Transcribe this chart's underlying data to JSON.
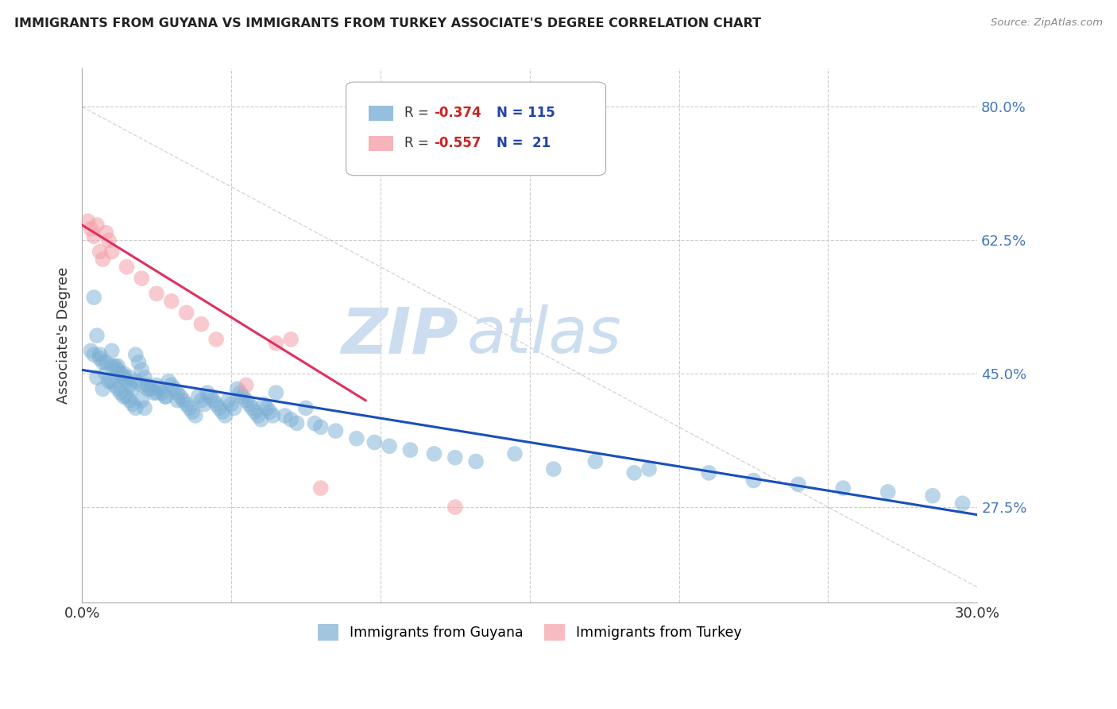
{
  "title": "IMMIGRANTS FROM GUYANA VS IMMIGRANTS FROM TURKEY ASSOCIATE'S DEGREE CORRELATION CHART",
  "source": "Source: ZipAtlas.com",
  "ylabel": "Associate's Degree",
  "xmin": 0.0,
  "xmax": 30.0,
  "ymin": 15.0,
  "ymax": 85.0,
  "yticks": [
    27.5,
    45.0,
    62.5,
    80.0
  ],
  "xticks": [
    0.0,
    5.0,
    10.0,
    15.0,
    20.0,
    25.0,
    30.0
  ],
  "guyana_color": "#7BAFD4",
  "turkey_color": "#F4A0A8",
  "guyana_line_color": "#1A4FBB",
  "turkey_line_color": "#E03060",
  "guyana_line_x0": 0.0,
  "guyana_line_x1": 30.0,
  "guyana_line_y0": 45.5,
  "guyana_line_y1": 26.5,
  "turkey_line_x0": 0.0,
  "turkey_line_x1": 9.5,
  "turkey_line_y0": 64.5,
  "turkey_line_y1": 41.5,
  "ref_line_x0": 0.0,
  "ref_line_x1": 30.0,
  "ref_line_y0": 80.0,
  "ref_line_y1": 17.0,
  "watermark_zip": "ZIP",
  "watermark_atlas": "atlas",
  "watermark_color": "#CCDDF0",
  "guyana_x": [
    0.4,
    0.5,
    0.5,
    0.6,
    0.7,
    0.7,
    0.8,
    0.9,
    1.0,
    1.0,
    1.1,
    1.1,
    1.2,
    1.2,
    1.3,
    1.3,
    1.4,
    1.4,
    1.5,
    1.5,
    1.6,
    1.6,
    1.7,
    1.7,
    1.8,
    1.8,
    1.9,
    2.0,
    2.0,
    2.1,
    2.1,
    2.2,
    2.3,
    2.4,
    2.5,
    2.6,
    2.7,
    2.8,
    2.9,
    3.0,
    3.1,
    3.2,
    3.3,
    3.4,
    3.5,
    3.6,
    3.7,
    3.8,
    3.9,
    4.0,
    4.1,
    4.2,
    4.3,
    4.4,
    4.5,
    4.6,
    4.7,
    4.8,
    4.9,
    5.0,
    5.1,
    5.2,
    5.3,
    5.4,
    5.5,
    5.6,
    5.7,
    5.8,
    5.9,
    6.0,
    6.1,
    6.2,
    6.3,
    6.4,
    6.5,
    6.8,
    7.0,
    7.2,
    7.5,
    7.8,
    8.0,
    8.5,
    9.2,
    9.8,
    10.3,
    11.0,
    11.8,
    12.5,
    13.2,
    14.5,
    15.8,
    17.2,
    18.5,
    19.0,
    21.0,
    22.5,
    24.0,
    25.5,
    27.0,
    28.5,
    29.5,
    0.3,
    0.4,
    0.6,
    0.8,
    1.0,
    1.2,
    1.4,
    1.6,
    1.8,
    2.0,
    2.2,
    2.5,
    2.8,
    3.2
  ],
  "guyana_y": [
    55.0,
    50.0,
    44.5,
    47.5,
    46.5,
    43.0,
    45.0,
    44.0,
    48.0,
    44.0,
    46.0,
    43.5,
    46.0,
    43.0,
    45.0,
    42.5,
    44.5,
    42.0,
    44.0,
    42.0,
    43.5,
    41.5,
    43.0,
    41.0,
    47.5,
    40.5,
    46.5,
    45.5,
    41.5,
    44.5,
    40.5,
    43.5,
    43.0,
    42.5,
    43.5,
    43.0,
    42.5,
    42.0,
    44.0,
    43.5,
    43.0,
    42.5,
    42.0,
    41.5,
    41.0,
    40.5,
    40.0,
    39.5,
    42.0,
    41.5,
    41.0,
    42.5,
    42.0,
    41.5,
    41.0,
    40.5,
    40.0,
    39.5,
    41.5,
    41.0,
    40.5,
    43.0,
    42.5,
    42.0,
    41.5,
    41.0,
    40.5,
    40.0,
    39.5,
    39.0,
    41.0,
    40.5,
    40.0,
    39.5,
    42.5,
    39.5,
    39.0,
    38.5,
    40.5,
    38.5,
    38.0,
    37.5,
    36.5,
    36.0,
    35.5,
    35.0,
    34.5,
    34.0,
    33.5,
    34.5,
    32.5,
    33.5,
    32.0,
    32.5,
    32.0,
    31.0,
    30.5,
    30.0,
    29.5,
    29.0,
    28.0,
    48.0,
    47.5,
    47.0,
    46.5,
    46.0,
    45.5,
    45.0,
    44.5,
    44.0,
    43.5,
    43.0,
    42.5,
    42.0,
    41.5
  ],
  "turkey_x": [
    0.2,
    0.3,
    0.4,
    0.5,
    0.6,
    0.7,
    0.8,
    0.9,
    1.0,
    1.5,
    2.0,
    2.5,
    3.0,
    3.5,
    4.0,
    4.5,
    5.5,
    6.5,
    7.0,
    8.0,
    12.5
  ],
  "turkey_y": [
    65.0,
    64.0,
    63.0,
    64.5,
    61.0,
    60.0,
    63.5,
    62.5,
    61.0,
    59.0,
    57.5,
    55.5,
    54.5,
    53.0,
    51.5,
    49.5,
    43.5,
    49.0,
    49.5,
    30.0,
    27.5
  ]
}
